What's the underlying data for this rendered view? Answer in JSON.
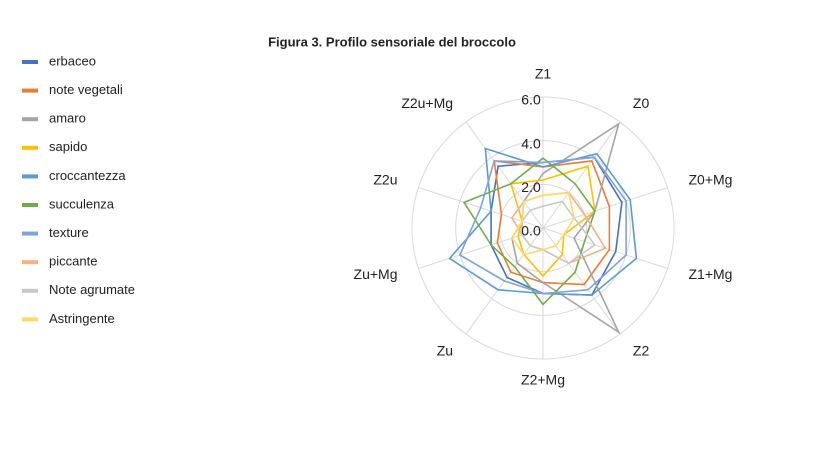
{
  "chart_data": {
    "type": "radar",
    "title": "Figura 3. Profilo sensoriale del broccolo",
    "categories": [
      "Z1",
      "Z0",
      "Z0+Mg",
      "Z1+Mg",
      "Z2",
      "Z2+Mg",
      "Zu",
      "Zu+Mg",
      "Z2u",
      "Z2u+Mg"
    ],
    "ylim": [
      0,
      6
    ],
    "yticks": [
      {
        "value": 0,
        "label": "0.0"
      },
      {
        "value": 2,
        "label": "2.0"
      },
      {
        "value": 4,
        "label": "4.0"
      },
      {
        "value": 6,
        "label": "6.0"
      }
    ],
    "grid": true,
    "legend": "left",
    "series": [
      {
        "name": "erbaceo",
        "color": "#4472c4",
        "values": [
          3.0,
          4.0,
          3.8,
          3.5,
          3.8,
          3.0,
          2.8,
          2.5,
          2.5,
          3.5
        ]
      },
      {
        "name": "note vegetali",
        "color": "#ed7d31",
        "values": [
          2.8,
          3.8,
          3.2,
          3.2,
          3.2,
          2.5,
          2.5,
          2.2,
          2.0,
          3.8
        ]
      },
      {
        "name": "amaro",
        "color": "#a5a5a5",
        "values": [
          2.5,
          5.9,
          2.5,
          1.5,
          5.9,
          2.5,
          2.0,
          1.5,
          1.0,
          1.5
        ]
      },
      {
        "name": "sapido",
        "color": "#ffc000",
        "values": [
          2.2,
          3.5,
          2.5,
          1.0,
          1.5,
          2.2,
          1.5,
          1.2,
          1.0,
          2.5
        ]
      },
      {
        "name": "croccantezza",
        "color": "#5b9bd5",
        "values": [
          2.8,
          4.2,
          4.2,
          4.5,
          3.8,
          3.0,
          3.5,
          4.5,
          2.5,
          4.5
        ]
      },
      {
        "name": "succulenza",
        "color": "#70ad47",
        "values": [
          3.2,
          2.5,
          2.5,
          2.0,
          2.5,
          3.5,
          2.2,
          2.5,
          3.8,
          2.5
        ]
      },
      {
        "name": "texture",
        "color": "#7fa3da",
        "values": [
          3.0,
          4.0,
          4.0,
          4.0,
          3.5,
          3.0,
          3.0,
          4.0,
          3.0,
          3.8
        ]
      },
      {
        "name": "piccante",
        "color": "#f4b183",
        "values": [
          1.5,
          2.0,
          2.0,
          3.0,
          2.0,
          1.0,
          1.0,
          1.0,
          1.5,
          1.5
        ]
      },
      {
        "name": "Note agrumate",
        "color": "#c9c9c9",
        "values": [
          1.0,
          1.5,
          1.5,
          2.5,
          2.0,
          1.0,
          1.0,
          1.0,
          1.0,
          1.0
        ]
      },
      {
        "name": "Astringente",
        "color": "#ffd966",
        "values": [
          1.5,
          2.0,
          1.5,
          1.0,
          1.0,
          1.0,
          1.5,
          1.5,
          1.0,
          1.5
        ]
      }
    ]
  }
}
